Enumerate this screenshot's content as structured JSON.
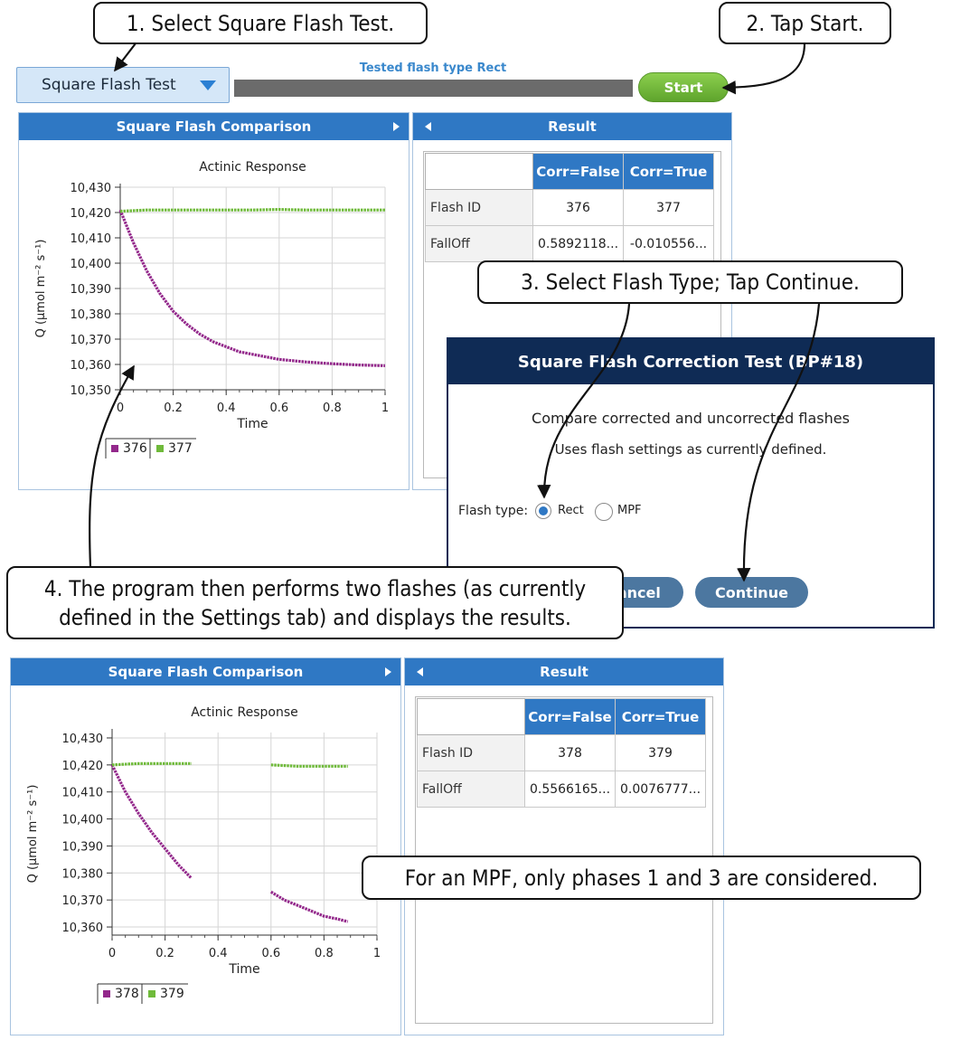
{
  "controls": {
    "flash_test_select": "Square Flash Test",
    "status_label": "Tested flash type Rect",
    "start_label": "Start"
  },
  "callouts": {
    "c1": "1. Select Square Flash Test.",
    "c2": "2. Tap Start.",
    "c3": "3. Select Flash Type; Tap Continue.",
    "c4_line1": "4. The program then performs two flashes (as currently",
    "c4_line2": "defined in the Settings tab) and displays the results.",
    "c5": "For an MPF, only phases 1 and 3 are considered."
  },
  "top": {
    "panel_title": "Square Flash Comparison",
    "result_title": "Result",
    "table": {
      "col1": "Corr=False",
      "col2": "Corr=True",
      "row1_label": "Flash ID",
      "row1_v1": "376",
      "row1_v2": "377",
      "row2_label": "FallOff",
      "row2_v1": "0.5892118...",
      "row2_v2": "-0.010556..."
    }
  },
  "bottom": {
    "panel_title": "Square Flash Comparison",
    "result_title": "Result",
    "table": {
      "col1": "Corr=False",
      "col2": "Corr=True",
      "row1_label": "Flash ID",
      "row1_v1": "378",
      "row1_v2": "379",
      "row2_label": "FallOff",
      "row2_v1": "0.5566165...",
      "row2_v2": "0.0076777..."
    }
  },
  "dialog": {
    "title": "Square Flash Correction Test (BP#18)",
    "line1": "Compare corrected and uncorrected flashes",
    "line2": "Uses flash settings as currently defined.",
    "flash_type_label": "Flash type:",
    "option_rect": "Rect",
    "option_mpf": "MPF",
    "cancel_label": "Cancel",
    "continue_label": "Continue"
  },
  "colors": {
    "purple": "#93288b",
    "green": "#6fba3a",
    "header_blue": "#2f78c4",
    "dialog_navy": "#0f2b55"
  },
  "chart_data": [
    {
      "type": "line",
      "title": "Actinic Response",
      "xlabel": "Time",
      "ylabel": "Q (µmol m⁻² s⁻¹)",
      "xlim": [
        0,
        1
      ],
      "ylim": [
        10350,
        10430
      ],
      "xticks": [
        "0",
        "0.2",
        "0.4",
        "0.6",
        "0.8",
        "1"
      ],
      "yticks": [
        "10,350",
        "10,360",
        "10,370",
        "10,380",
        "10,390",
        "10,400",
        "10,410",
        "10,420",
        "10,430"
      ],
      "grid": true,
      "legend_position": "bottom",
      "series": [
        {
          "name": "376",
          "color": "#93288b",
          "points": [
            [
              0.0,
              10421
            ],
            [
              0.05,
              10408
            ],
            [
              0.1,
              10397
            ],
            [
              0.15,
              10388
            ],
            [
              0.2,
              10381
            ],
            [
              0.25,
              10376
            ],
            [
              0.3,
              10372
            ],
            [
              0.35,
              10369
            ],
            [
              0.4,
              10367
            ],
            [
              0.45,
              10365
            ],
            [
              0.5,
              10364
            ],
            [
              0.6,
              10362
            ],
            [
              0.7,
              10361
            ],
            [
              0.8,
              10360.3
            ],
            [
              0.9,
              10359.8
            ],
            [
              1.0,
              10359.5
            ]
          ]
        },
        {
          "name": "377",
          "color": "#6fba3a",
          "points": [
            [
              0.0,
              10420.5
            ],
            [
              0.1,
              10421
            ],
            [
              0.2,
              10421
            ],
            [
              0.3,
              10421
            ],
            [
              0.4,
              10421
            ],
            [
              0.5,
              10421
            ],
            [
              0.6,
              10421.2
            ],
            [
              0.7,
              10421
            ],
            [
              0.8,
              10421
            ],
            [
              0.9,
              10421
            ],
            [
              1.0,
              10421
            ]
          ]
        }
      ]
    },
    {
      "type": "line",
      "title": "Actinic Response",
      "xlabel": "Time",
      "ylabel": "Q (µmol m⁻² s⁻¹)",
      "xlim": [
        0,
        1
      ],
      "ylim": [
        10357,
        10432
      ],
      "xticks": [
        "0",
        "0.2",
        "0.4",
        "0.6",
        "0.8",
        "1"
      ],
      "yticks": [
        "10,360",
        "10,370",
        "10,380",
        "10,390",
        "10,400",
        "10,410",
        "10,420",
        "10,430"
      ],
      "grid": true,
      "legend_position": "bottom",
      "series": [
        {
          "name": "378",
          "color": "#93288b",
          "segments": [
            [
              [
                0.0,
                10420
              ],
              [
                0.05,
                10410
              ],
              [
                0.1,
                10402
              ],
              [
                0.15,
                10395
              ],
              [
                0.2,
                10389
              ],
              [
                0.25,
                10383
              ],
              [
                0.3,
                10378
              ]
            ],
            [
              [
                0.6,
                10373
              ],
              [
                0.65,
                10370
              ],
              [
                0.7,
                10368
              ],
              [
                0.75,
                10366
              ],
              [
                0.8,
                10364
              ],
              [
                0.85,
                10363
              ],
              [
                0.89,
                10362
              ]
            ]
          ]
        },
        {
          "name": "379",
          "color": "#6fba3a",
          "segments": [
            [
              [
                0.0,
                10420
              ],
              [
                0.1,
                10420.5
              ],
              [
                0.2,
                10420.5
              ],
              [
                0.3,
                10420.5
              ]
            ],
            [
              [
                0.6,
                10420
              ],
              [
                0.7,
                10419.5
              ],
              [
                0.8,
                10419.5
              ],
              [
                0.89,
                10419.5
              ]
            ]
          ]
        }
      ]
    }
  ]
}
